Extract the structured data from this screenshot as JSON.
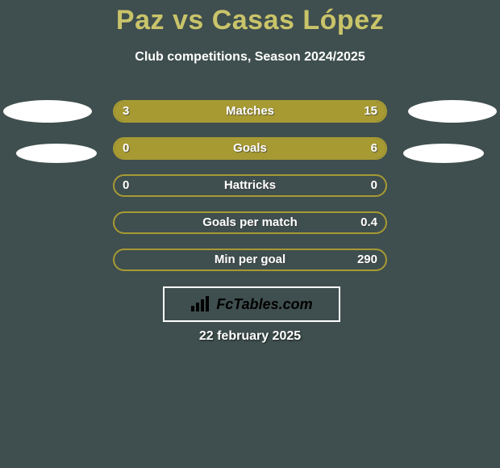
{
  "title": "Paz vs Casas López",
  "subtitle": "Club competitions, Season 2024/2025",
  "date": "22 february 2025",
  "credit": "FcTables.com",
  "colors": {
    "canvas_bg": "#3f4e4e",
    "title_color": "#c9c46a",
    "subtitle_color": "#ffffff",
    "bar_border": "#a79a33",
    "fill_left": "#a79a33",
    "fill_right": "#a79a33",
    "text_color": "#ffffff",
    "credit_border": "#ffffff",
    "credit_text": "#000000"
  },
  "title_fontsize": 34,
  "subtitle_fontsize": 16,
  "label_fontsize": 15,
  "date_fontsize": 16,
  "bars": [
    {
      "label": "Matches",
      "left": "3",
      "right": "15",
      "fill_left_pct": 16.7,
      "fill_right_pct": 83.3
    },
    {
      "label": "Goals",
      "left": "0",
      "right": "6",
      "fill_left_pct": 0,
      "fill_right_pct": 100
    },
    {
      "label": "Hattricks",
      "left": "0",
      "right": "0",
      "fill_left_pct": 0,
      "fill_right_pct": 0
    },
    {
      "label": "Goals per match",
      "left": "",
      "right": "0.4",
      "fill_left_pct": 0,
      "fill_right_pct": 0
    },
    {
      "label": "Min per goal",
      "left": "",
      "right": "290",
      "fill_left_pct": 0,
      "fill_right_pct": 0
    }
  ]
}
